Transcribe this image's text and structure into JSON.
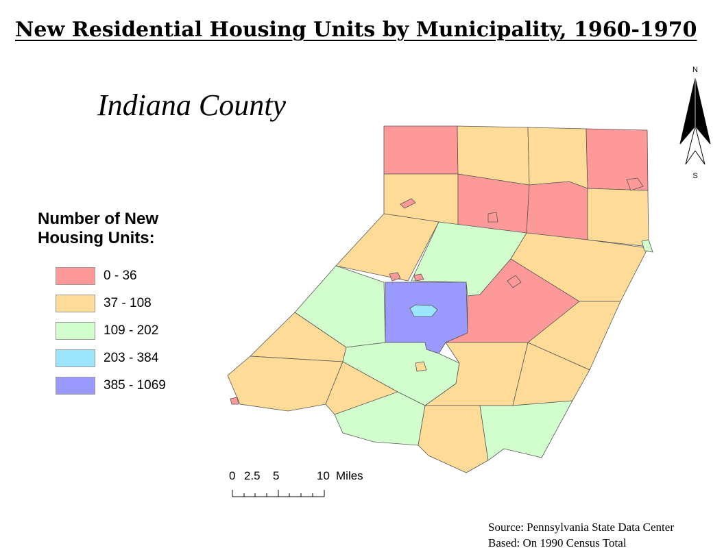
{
  "title": "New Residential Housing Units by Municipality, 1960-1970",
  "subtitle": "Indiana County",
  "legend": {
    "title_line1": "Number of New",
    "title_line2": "Housing Units:",
    "classes": [
      {
        "label": "0 - 36",
        "color": "#fd9999"
      },
      {
        "label": "37 - 108",
        "color": "#fedc98"
      },
      {
        "label": "109 - 202",
        "color": "#d2fdcd"
      },
      {
        "label": "203 - 384",
        "color": "#9be6fe"
      },
      {
        "label": "385 - 1069",
        "color": "#9999fe"
      }
    ]
  },
  "north_arrow": {
    "north_label": "N",
    "south_label": "S",
    "icon": "north-arrow-icon"
  },
  "scale_bar": {
    "labels": [
      "0",
      "2.5",
      "5",
      "10"
    ],
    "unit": "Miles"
  },
  "source": {
    "line1": "Source: Pennsylvania State Data Center",
    "line2": "Based: On 1990 Census Total"
  },
  "map_data": {
    "regions": [
      {
        "id": "nw-1",
        "class": 0
      },
      {
        "id": "n-2",
        "class": 1
      },
      {
        "id": "n-3",
        "class": 1
      },
      {
        "id": "ne-4",
        "class": 0
      },
      {
        "id": "n-5",
        "class": 1
      },
      {
        "id": "n-6",
        "class": 0
      },
      {
        "id": "n-7",
        "class": 0
      },
      {
        "id": "e-8",
        "class": 1
      },
      {
        "id": "w-9",
        "class": 1
      },
      {
        "id": "c-10",
        "class": 2
      },
      {
        "id": "e-11",
        "class": 1
      },
      {
        "id": "w-12",
        "class": 2
      },
      {
        "id": "c-13",
        "class": 4
      },
      {
        "id": "c-14",
        "class": 0
      },
      {
        "id": "e-15",
        "class": 1
      },
      {
        "id": "sw-16",
        "class": 1
      },
      {
        "id": "s-17",
        "class": 2
      },
      {
        "id": "s-18",
        "class": 1
      },
      {
        "id": "se-19",
        "class": 1
      },
      {
        "id": "sw-20",
        "class": 1
      },
      {
        "id": "sw-21",
        "class": 1
      },
      {
        "id": "s-22",
        "class": 2
      },
      {
        "id": "s-23",
        "class": 1
      },
      {
        "id": "s-24",
        "class": 2
      },
      {
        "id": "s-25",
        "class": 1
      }
    ]
  }
}
